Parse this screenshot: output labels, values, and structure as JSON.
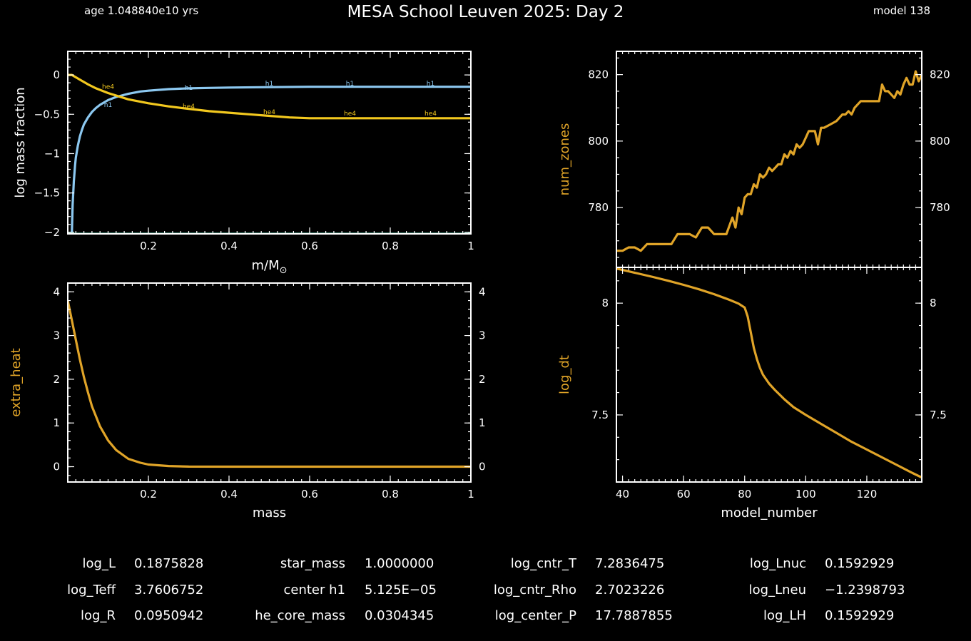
{
  "header": {
    "age_text": "age 1.048840e10 yrs",
    "title": "MESA School Leuven 2025: Day 2",
    "model_text": "model 138"
  },
  "colors": {
    "background": "#000000",
    "axes": "#ffffff",
    "h1": "#8cc8f0",
    "he4": "#f2c81e",
    "history": "#e0a428",
    "floor": "#5fc0a8"
  },
  "chart_data": [
    {
      "type": "line",
      "name": "abundance-plot",
      "xlabel_main": "m/M",
      "xlabel_sub": "⊙",
      "ylabel": "log mass fraction",
      "xlim": [
        0.0,
        1.0
      ],
      "ylim": [
        -2.02,
        0.3
      ],
      "xticks": [
        0.2,
        0.4,
        0.6,
        0.8,
        1
      ],
      "xtick_labels": [
        "0.2",
        "0.4",
        "0.6",
        "0.8",
        "1"
      ],
      "yticks": [
        0,
        -0.5,
        -1,
        -1.5,
        -2
      ],
      "ytick_labels": [
        "0",
        "−0.5",
        "−1",
        "−1.5",
        "−2"
      ],
      "series": [
        {
          "name": "h1",
          "color_key": "h1",
          "x": [
            0.01,
            0.012,
            0.015,
            0.018,
            0.02,
            0.025,
            0.03,
            0.035,
            0.04,
            0.05,
            0.06,
            0.07,
            0.08,
            0.1,
            0.12,
            0.15,
            0.18,
            0.2,
            0.25,
            0.3,
            0.35,
            0.4,
            0.5,
            0.6,
            0.7,
            0.8,
            0.9,
            1.0
          ],
          "y": [
            -2.02,
            -1.65,
            -1.35,
            -1.15,
            -1.05,
            -0.9,
            -0.78,
            -0.7,
            -0.63,
            -0.54,
            -0.47,
            -0.42,
            -0.38,
            -0.32,
            -0.28,
            -0.24,
            -0.21,
            -0.2,
            -0.18,
            -0.17,
            -0.165,
            -0.16,
            -0.155,
            -0.15,
            -0.15,
            -0.15,
            -0.15,
            -0.15
          ],
          "labels": [
            {
              "x": 0.1,
              "y": -0.38
            },
            {
              "x": 0.3,
              "y": -0.16
            },
            {
              "x": 0.5,
              "y": -0.11
            },
            {
              "x": 0.7,
              "y": -0.11
            },
            {
              "x": 0.9,
              "y": -0.11
            }
          ]
        },
        {
          "name": "he4",
          "color_key": "he4",
          "x": [
            0.0,
            0.01,
            0.02,
            0.03,
            0.05,
            0.07,
            0.1,
            0.15,
            0.2,
            0.25,
            0.3,
            0.35,
            0.4,
            0.45,
            0.5,
            0.55,
            0.6,
            0.7,
            0.8,
            0.9,
            1.0
          ],
          "y": [
            0.0,
            0.0,
            -0.03,
            -0.06,
            -0.12,
            -0.17,
            -0.23,
            -0.31,
            -0.36,
            -0.4,
            -0.43,
            -0.46,
            -0.48,
            -0.5,
            -0.52,
            -0.54,
            -0.55,
            -0.55,
            -0.55,
            -0.55,
            -0.55
          ],
          "labels": [
            {
              "x": 0.1,
              "y": -0.15
            },
            {
              "x": 0.3,
              "y": -0.4
            },
            {
              "x": 0.5,
              "y": -0.47
            },
            {
              "x": 0.7,
              "y": -0.49
            },
            {
              "x": 0.9,
              "y": -0.49
            }
          ]
        },
        {
          "name": "floor",
          "color_key": "floor",
          "x": [
            0.0,
            1.0
          ],
          "y": [
            -2.02,
            -2.02
          ],
          "labels": []
        }
      ]
    },
    {
      "type": "line",
      "name": "extra-heat-plot",
      "xlabel": "mass",
      "ylabel": "extra_heat",
      "xlim": [
        0.0,
        1.0
      ],
      "ylim": [
        -0.35,
        4.2
      ],
      "xticks": [
        0.2,
        0.4,
        0.6,
        0.8,
        1
      ],
      "xtick_labels": [
        "0.2",
        "0.4",
        "0.6",
        "0.8",
        "1"
      ],
      "yticks": [
        0,
        1,
        2,
        3,
        4
      ],
      "ytick_labels": [
        "0",
        "1",
        "2",
        "3",
        "4"
      ],
      "series": [
        {
          "name": "extra_heat",
          "color_key": "history",
          "x": [
            0.0,
            0.01,
            0.02,
            0.03,
            0.04,
            0.05,
            0.06,
            0.08,
            0.1,
            0.12,
            0.15,
            0.18,
            0.2,
            0.25,
            0.3,
            0.4,
            0.6,
            0.8,
            1.0
          ],
          "y": [
            3.8,
            3.35,
            2.9,
            2.45,
            2.05,
            1.7,
            1.38,
            0.92,
            0.6,
            0.38,
            0.18,
            0.09,
            0.05,
            0.015,
            0.003,
            0.0,
            0.0,
            0.0,
            0.0
          ]
        }
      ]
    },
    {
      "type": "line",
      "name": "num-zones-plot",
      "xlabel": "",
      "ylabel": "num_zones",
      "xlim": [
        38,
        138
      ],
      "ylim": [
        762,
        827
      ],
      "yticks": [
        780,
        800,
        820
      ],
      "ytick_labels": [
        "780",
        "800",
        "820"
      ],
      "series": [
        {
          "name": "num_zones",
          "color_key": "history",
          "x": [
            38,
            40,
            42,
            44,
            46,
            48,
            50,
            52,
            54,
            56,
            58,
            60,
            62,
            64,
            66,
            68,
            70,
            72,
            74,
            76,
            77,
            78,
            79,
            80,
            81,
            82,
            83,
            84,
            85,
            86,
            87,
            88,
            89,
            90,
            91,
            92,
            93,
            94,
            95,
            96,
            97,
            98,
            99,
            100,
            101,
            102,
            103,
            104,
            105,
            106,
            108,
            110,
            112,
            113,
            114,
            115,
            116,
            118,
            120,
            122,
            123,
            124,
            125,
            126,
            127,
            128,
            129,
            130,
            131,
            132,
            133,
            134,
            135,
            136,
            137,
            138
          ],
          "y": [
            767,
            767,
            768,
            768,
            767,
            769,
            769,
            769,
            769,
            769,
            772,
            772,
            772,
            771,
            774,
            774,
            772,
            772,
            772,
            777,
            774,
            780,
            778,
            783,
            784,
            784,
            787,
            786,
            790,
            789,
            790,
            792,
            791,
            792,
            793,
            793,
            796,
            795,
            797,
            796,
            799,
            798,
            799,
            801,
            803,
            803,
            803,
            799,
            804,
            804,
            805,
            806,
            808,
            808,
            809,
            808,
            810,
            812,
            812,
            812,
            812,
            812,
            817,
            815,
            815,
            814,
            813,
            815,
            814,
            817,
            819,
            817,
            817,
            821,
            818,
            820
          ]
        }
      ]
    },
    {
      "type": "line",
      "name": "log-dt-plot",
      "xlabel": "model_number",
      "ylabel": "log_dt",
      "xlim": [
        38,
        138
      ],
      "ylim": [
        7.2,
        8.16
      ],
      "xticks": [
        40,
        60,
        80,
        100,
        120
      ],
      "xtick_labels": [
        "40",
        "60",
        "80",
        "100",
        "120"
      ],
      "yticks": [
        7.5,
        8
      ],
      "ytick_labels": [
        "7.5",
        "8"
      ],
      "series": [
        {
          "name": "log_dt",
          "color_key": "history",
          "x": [
            38,
            45,
            50,
            55,
            60,
            65,
            70,
            75,
            78,
            80,
            81,
            82,
            83,
            84,
            85,
            86,
            88,
            90,
            93,
            96,
            100,
            105,
            110,
            115,
            120,
            125,
            130,
            135,
            138
          ],
          "y": [
            8.155,
            8.133,
            8.117,
            8.1,
            8.082,
            8.062,
            8.04,
            8.015,
            7.998,
            7.98,
            7.94,
            7.87,
            7.8,
            7.75,
            7.71,
            7.68,
            7.64,
            7.61,
            7.57,
            7.535,
            7.5,
            7.46,
            7.42,
            7.38,
            7.345,
            7.31,
            7.275,
            7.24,
            7.22
          ]
        }
      ]
    }
  ],
  "stats": {
    "columns": [
      {
        "rows": [
          {
            "label": "log_L",
            "value": "0.1875828"
          },
          {
            "label": "log_Teff",
            "value": "3.7606752"
          },
          {
            "label": "log_R",
            "value": "0.0950942"
          }
        ]
      },
      {
        "rows": [
          {
            "label": "star_mass",
            "value": "1.0000000"
          },
          {
            "label": "center h1",
            "value": "5.125E−05"
          },
          {
            "label": "he_core_mass",
            "value": "0.0304345"
          }
        ]
      },
      {
        "rows": [
          {
            "label": "log_cntr_T",
            "value": "7.2836475"
          },
          {
            "label": "log_cntr_Rho",
            "value": "2.7023226"
          },
          {
            "label": "log_center_P",
            "value": "17.7887855"
          }
        ]
      },
      {
        "rows": [
          {
            "label": "log_Lnuc",
            "value": "0.1592929"
          },
          {
            "label": "log_Lneu",
            "value": "−1.2398793"
          },
          {
            "label": "log_LH",
            "value": "0.1592929"
          }
        ]
      }
    ]
  }
}
